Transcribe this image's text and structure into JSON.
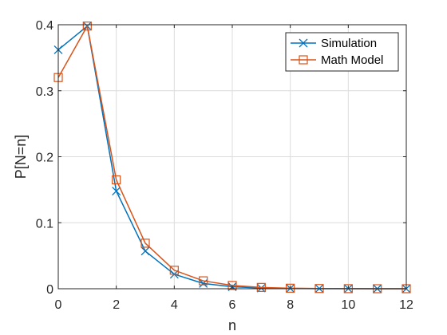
{
  "chart_data": {
    "type": "line",
    "xlabel": "n",
    "ylabel": "P[N=n]",
    "xlim": [
      0,
      12
    ],
    "ylim": [
      0,
      0.4
    ],
    "xticks": [
      "0",
      "2",
      "4",
      "6",
      "8",
      "10",
      "12"
    ],
    "yticks": [
      "0",
      "0.1",
      "0.2",
      "0.3",
      "0.4"
    ],
    "grid": true,
    "legend_position": "top-right",
    "x": [
      0,
      1,
      2,
      3,
      4,
      5,
      6,
      7,
      8,
      9,
      10,
      11,
      12
    ],
    "series": [
      {
        "name": "Simulation",
        "color": "#0072BD",
        "marker": "x",
        "values": [
          0.362,
          0.398,
          0.148,
          0.057,
          0.022,
          0.008,
          0.003,
          0.001,
          0.0005,
          0.0002,
          0.0001,
          0.0,
          0.0
        ]
      },
      {
        "name": "Math Model",
        "color": "#D95319",
        "marker": "square",
        "values": [
          0.32,
          0.398,
          0.165,
          0.069,
          0.028,
          0.012,
          0.005,
          0.002,
          0.0008,
          0.0003,
          0.0001,
          0.0,
          0.0
        ]
      }
    ]
  }
}
